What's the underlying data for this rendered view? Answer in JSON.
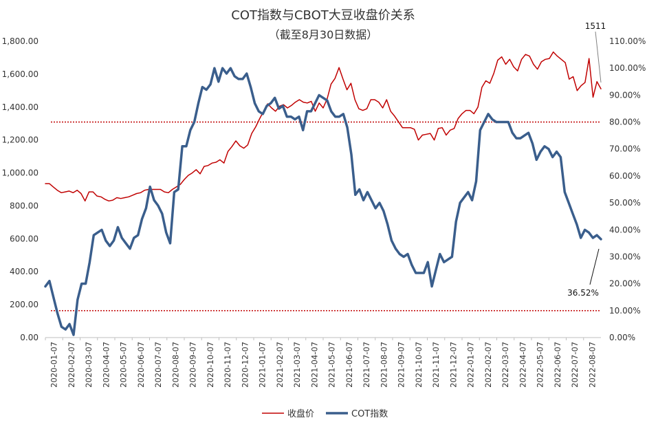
{
  "chart_data": {
    "type": "line",
    "title": "COT指数与CBOT大豆收盘价关系",
    "subtitle": "（截至8月30日数据）",
    "y_left": {
      "min": 0,
      "max": 1800,
      "step": 200,
      "ticks": [
        "0.00",
        "200.00",
        "400.00",
        "600.00",
        "800.00",
        "1,000.00",
        "1,200.00",
        "1,400.00",
        "1,600.00",
        "1,800.00"
      ]
    },
    "y_right": {
      "min": 0,
      "max": 110,
      "step": 10,
      "ticks": [
        "0.00%",
        "10.00%",
        "20.00%",
        "30.00%",
        "40.00%",
        "50.00%",
        "60.00%",
        "70.00%",
        "80.00%",
        "90.00%",
        "100.00%",
        "110.00%"
      ]
    },
    "x_ticks": [
      "2020-01-07",
      "2020-02-07",
      "2020-03-07",
      "2020-04-07",
      "2020-05-07",
      "2020-06-07",
      "2020-07-07",
      "2020-08-07",
      "2020-09-07",
      "2020-10-07",
      "2020-11-07",
      "2020-12-07",
      "2021-01-07",
      "2021-02-07",
      "2021-03-07",
      "2021-04-07",
      "2021-05-07",
      "2021-06-07",
      "2021-07-07",
      "2021-08-07",
      "2021-09-07",
      "2021-10-07",
      "2021-11-07",
      "2021-12-07",
      "2022-01-07",
      "2022-02-07",
      "2022-03-07",
      "2022-04-07",
      "2022-05-07",
      "2022-06-07",
      "2022-07-07",
      "2022-08-07"
    ],
    "reference_lines": [
      {
        "axis": "right",
        "value": 80,
        "color": "#c00000",
        "style": "dotted"
      },
      {
        "axis": "right",
        "value": 10,
        "color": "#c00000",
        "style": "dotted"
      }
    ],
    "annotations": [
      {
        "text": "1511",
        "series": "收盘价"
      },
      {
        "text": "36.52%",
        "series": "COT指数"
      }
    ],
    "grid": false,
    "legend_position": "bottom",
    "series": [
      {
        "name": "收盘价",
        "axis": "left",
        "color": "#c00000",
        "width": 1.5,
        "values": [
          935,
          935,
          915,
          895,
          880,
          885,
          890,
          880,
          895,
          875,
          830,
          885,
          885,
          860,
          855,
          840,
          830,
          835,
          850,
          845,
          850,
          855,
          865,
          875,
          880,
          895,
          900,
          900,
          900,
          900,
          885,
          880,
          900,
          915,
          930,
          960,
          985,
          1000,
          1020,
          995,
          1040,
          1045,
          1060,
          1065,
          1080,
          1060,
          1130,
          1160,
          1195,
          1165,
          1150,
          1170,
          1240,
          1280,
          1330,
          1375,
          1420,
          1395,
          1375,
          1405,
          1415,
          1395,
          1410,
          1430,
          1445,
          1430,
          1425,
          1435,
          1375,
          1425,
          1395,
          1450,
          1540,
          1575,
          1640,
          1570,
          1505,
          1545,
          1445,
          1390,
          1380,
          1390,
          1445,
          1445,
          1430,
          1395,
          1445,
          1375,
          1345,
          1310,
          1275,
          1275,
          1275,
          1265,
          1200,
          1230,
          1235,
          1240,
          1200,
          1270,
          1275,
          1230,
          1260,
          1270,
          1330,
          1360,
          1380,
          1380,
          1360,
          1400,
          1520,
          1560,
          1545,
          1605,
          1685,
          1705,
          1660,
          1690,
          1645,
          1620,
          1690,
          1720,
          1710,
          1660,
          1630,
          1675,
          1690,
          1695,
          1735,
          1710,
          1690,
          1670,
          1570,
          1585,
          1500,
          1530,
          1550,
          1695,
          1460,
          1555,
          1511
        ]
      },
      {
        "name": "COT指数",
        "axis": "right",
        "color": "#3a5e8c",
        "width": 3.5,
        "values": [
          19,
          21,
          15,
          9,
          4,
          3,
          5,
          1,
          14,
          20,
          20,
          28,
          38,
          39,
          40,
          36,
          34,
          36,
          41,
          37,
          35,
          33,
          37,
          38,
          44,
          48,
          56,
          51,
          49,
          46,
          39,
          35,
          54,
          55,
          71,
          71,
          77,
          80,
          87,
          93,
          92,
          94,
          100,
          95,
          100,
          98,
          100,
          97,
          96,
          96,
          98,
          93,
          87,
          84,
          83,
          86,
          87,
          89,
          85,
          86,
          82,
          82,
          81,
          82,
          77,
          84,
          84,
          87,
          90,
          89,
          88,
          84,
          82,
          82,
          83,
          78,
          68,
          53,
          55,
          51,
          54,
          51,
          48,
          50,
          47,
          42,
          36,
          33,
          31,
          30,
          31,
          27,
          24,
          24,
          24,
          28,
          19,
          25,
          31,
          28,
          29,
          30,
          43,
          50,
          52,
          54,
          51,
          58,
          77,
          80,
          83,
          81,
          80,
          80,
          80,
          80,
          76,
          74,
          74,
          75,
          76,
          72,
          66,
          69,
          71,
          70,
          67,
          69,
          67,
          54,
          50,
          46,
          42,
          37,
          40,
          39,
          37,
          38,
          36.52
        ]
      }
    ]
  }
}
